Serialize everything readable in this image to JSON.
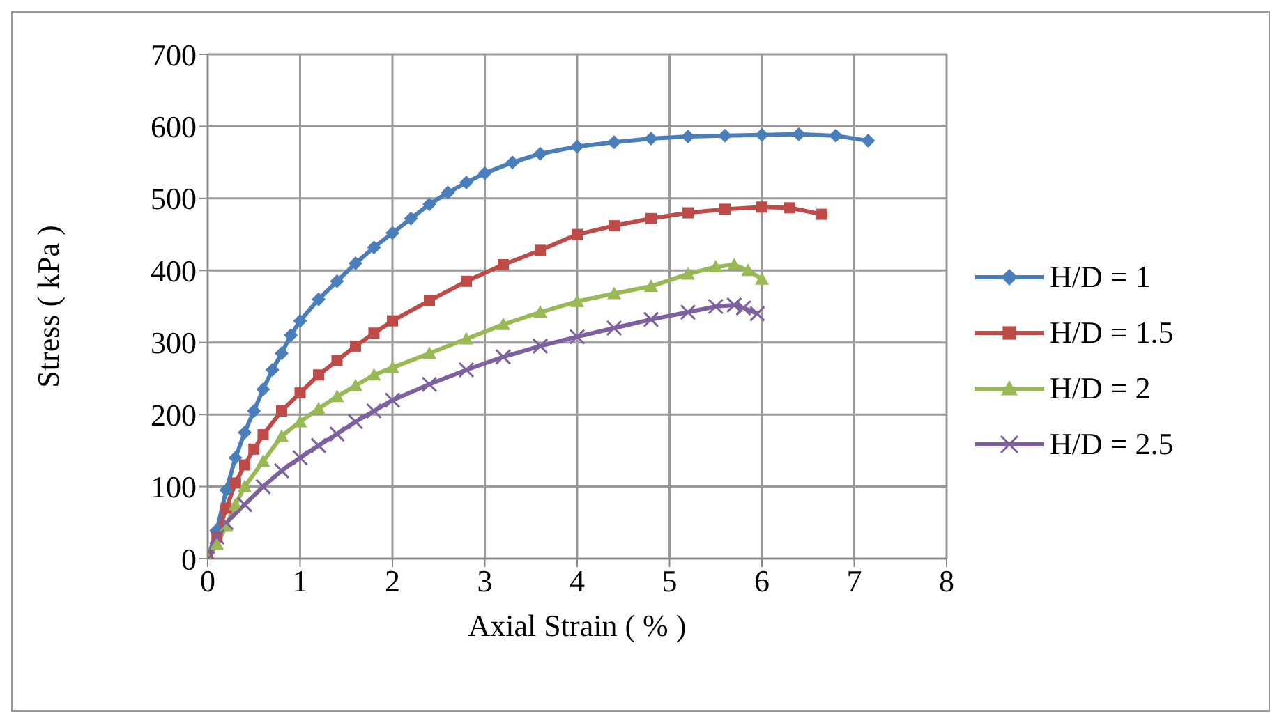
{
  "chart_data": {
    "type": "line",
    "xlabel": "Axial Strain ( % )",
    "ylabel": "Stress ( kPa )",
    "xlim": [
      0,
      8
    ],
    "xticks": [
      0,
      1,
      2,
      3,
      4,
      5,
      6,
      7,
      8
    ],
    "ylim": [
      0,
      700
    ],
    "yticks": [
      0,
      100,
      200,
      300,
      400,
      500,
      600,
      700
    ],
    "grid": true,
    "legend": "right",
    "line_style": "solid",
    "series": [
      {
        "name": "H/D = 1",
        "color": "#4a7ebb",
        "marker": "diamond",
        "x": [
          0,
          0.1,
          0.2,
          0.3,
          0.4,
          0.5,
          0.6,
          0.7,
          0.8,
          0.9,
          1.0,
          1.2,
          1.4,
          1.6,
          1.8,
          2.0,
          2.2,
          2.4,
          2.6,
          2.8,
          3.0,
          3.3,
          3.6,
          4.0,
          4.4,
          4.8,
          5.2,
          5.6,
          6.0,
          6.4,
          6.8,
          7.15
        ],
        "values": [
          0,
          40,
          95,
          140,
          175,
          205,
          235,
          262,
          285,
          310,
          330,
          360,
          385,
          410,
          432,
          452,
          472,
          492,
          508,
          522,
          535,
          550,
          562,
          572,
          578,
          583,
          586,
          587,
          588,
          589,
          587,
          580
        ]
      },
      {
        "name": "H/D = 1.5",
        "color": "#be4b48",
        "marker": "square",
        "x": [
          0,
          0.1,
          0.2,
          0.3,
          0.4,
          0.5,
          0.6,
          0.8,
          1.0,
          1.2,
          1.4,
          1.6,
          1.8,
          2.0,
          2.4,
          2.8,
          3.2,
          3.6,
          4.0,
          4.4,
          4.8,
          5.2,
          5.6,
          6.0,
          6.3,
          6.65
        ],
        "values": [
          0,
          30,
          70,
          105,
          130,
          152,
          172,
          205,
          230,
          255,
          275,
          295,
          313,
          330,
          358,
          385,
          408,
          428,
          450,
          462,
          472,
          480,
          485,
          488,
          487,
          478
        ]
      },
      {
        "name": "H/D = 2",
        "color": "#98b954",
        "marker": "triangle",
        "x": [
          0,
          0.1,
          0.2,
          0.3,
          0.4,
          0.6,
          0.8,
          1.0,
          1.2,
          1.4,
          1.6,
          1.8,
          2.0,
          2.4,
          2.8,
          3.2,
          3.6,
          4.0,
          4.4,
          4.8,
          5.2,
          5.5,
          5.7,
          5.85,
          6.0
        ],
        "values": [
          0,
          20,
          45,
          75,
          100,
          135,
          170,
          190,
          208,
          225,
          240,
          255,
          265,
          285,
          305,
          325,
          342,
          357,
          368,
          378,
          395,
          405,
          408,
          400,
          388
        ]
      },
      {
        "name": "H/D = 2.5",
        "color": "#7d60a0",
        "marker": "cross",
        "x": [
          0,
          0.1,
          0.2,
          0.4,
          0.6,
          0.8,
          1.0,
          1.2,
          1.4,
          1.6,
          1.8,
          2.0,
          2.4,
          2.8,
          3.2,
          3.6,
          4.0,
          4.4,
          4.8,
          5.2,
          5.5,
          5.7,
          5.8,
          5.95
        ],
        "values": [
          0,
          30,
          50,
          75,
          100,
          122,
          140,
          157,
          173,
          190,
          205,
          220,
          242,
          262,
          280,
          295,
          308,
          320,
          332,
          342,
          350,
          352,
          348,
          340
        ]
      }
    ]
  }
}
